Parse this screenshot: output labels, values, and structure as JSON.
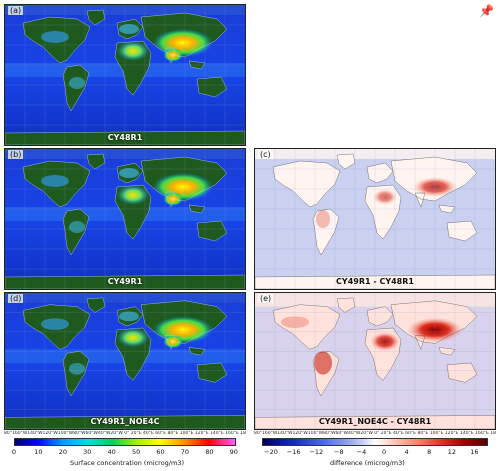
{
  "panels": {
    "a": {
      "label": "(a)",
      "title": "CY48R1"
    },
    "b": {
      "label": "(b)",
      "title": "CY49R1"
    },
    "c": {
      "label": "(c)",
      "title": "CY49R1 - CY48R1"
    },
    "d": {
      "label": "(d)",
      "title": "CY49R1_NOE4C"
    },
    "e": {
      "label": "(e)",
      "title": "CY49R1_NOE4C - CY48R1"
    }
  },
  "lon_labels_left": "80°160°W140°W120°W100°W80°W60°W40°W20°W  0°  20°E 40°E 60°E 80°E 100°E 120°E 140°E 160°E 180°W",
  "lon_labels_right": "80°160°W140°W120°W100°W80°W60°W40°W20°W  0°  20°E 40°E 60°E 80°E 100°E 120°E 140°E 160°E 180°",
  "colorbar_left": {
    "ticks": [
      "0",
      "10",
      "20",
      "30",
      "40",
      "50",
      "60",
      "70",
      "80",
      "90"
    ],
    "label": "Surface concentration (microg/m3)"
  },
  "colorbar_right": {
    "ticks": [
      "−20",
      "−16",
      "−12",
      "−8",
      "−4",
      "0",
      "4",
      "8",
      "12",
      "16"
    ],
    "label": "difference (microg/m3)"
  },
  "colors": {
    "ocean_low": "#1020c8",
    "land_dark": "#1e5a1e",
    "diff_ocean": "#c9d0f0",
    "diff_high": "#8b0000"
  }
}
